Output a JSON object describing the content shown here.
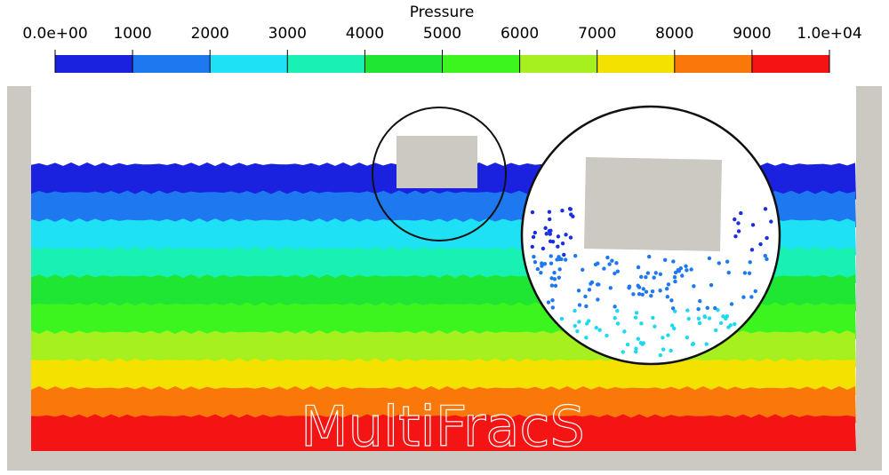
{
  "colorbar": {
    "title": "Pressure",
    "ticks": [
      {
        "value": 0,
        "label": "0.0e+00"
      },
      1000,
      2000,
      3000,
      4000,
      5000,
      6000,
      7000,
      8000,
      9000,
      {
        "value": 10000,
        "label": "1.0e+04"
      }
    ],
    "colors": [
      "#1a22e0",
      "#1e78f0",
      "#1ee1f5",
      "#19f0b4",
      "#1ee632",
      "#3cf51e",
      "#a5f01e",
      "#f5e100",
      "#fa780a",
      "#f51414"
    ]
  },
  "watermark": "MultiFracS"
}
